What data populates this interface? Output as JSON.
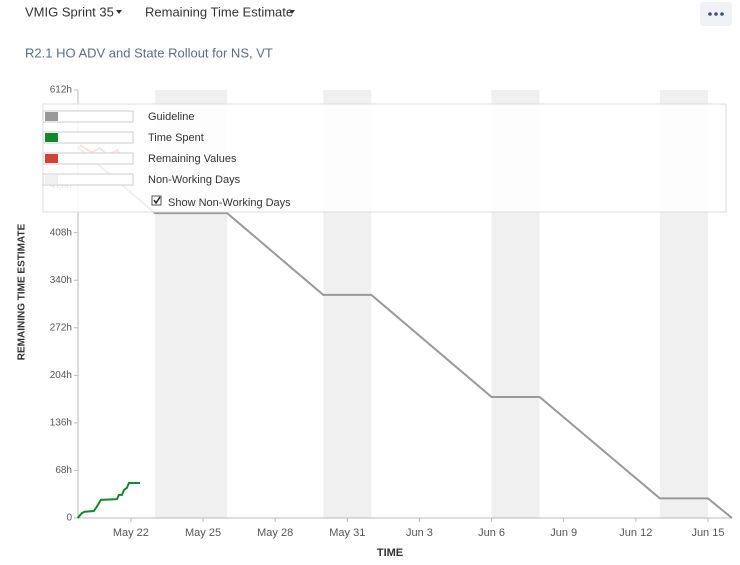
{
  "header": {
    "sprint": "VMIG Sprint 35",
    "report": "Remaining Time Estimate"
  },
  "chart_data": {
    "type": "line",
    "subtitle": "R2.1 HO ADV and State Rollout for NS, VT",
    "x_label": "TIME",
    "y_label": "REMAINING TIME ESTIMATE",
    "xlim": [
      19.8,
      47
    ],
    "xticks": [
      {
        "value": 22,
        "label": "May 22"
      },
      {
        "value": 25,
        "label": "May 25"
      },
      {
        "value": 28,
        "label": "May 28"
      },
      {
        "value": 31,
        "label": "May 31"
      },
      {
        "value": 34,
        "label": "Jun 3"
      },
      {
        "value": 37,
        "label": "Jun 6"
      },
      {
        "value": 40,
        "label": "Jun 9"
      },
      {
        "value": 43,
        "label": "Jun 12"
      },
      {
        "value": 46,
        "label": "Jun 15"
      }
    ],
    "ylim": [
      0,
      612
    ],
    "yticks": [
      0,
      {
        "value": 68,
        "label": "68h"
      },
      {
        "value": 136,
        "label": "136h"
      },
      {
        "value": 204,
        "label": "204h"
      },
      {
        "value": 272,
        "label": "272h"
      },
      {
        "value": 340,
        "label": "340h"
      },
      {
        "value": 408,
        "label": "408h"
      },
      {
        "value": 476,
        "label": "476h"
      },
      {
        "value": 544,
        "label": "544h"
      },
      {
        "value": 612,
        "label": "612h"
      }
    ],
    "series": [
      {
        "name": "Guideline",
        "color": "#999999",
        "x": [
          19.8,
          23,
          26,
          30,
          32,
          37,
          39,
          44,
          46,
          47
        ],
        "values": [
          530,
          436,
          436,
          319,
          319,
          173,
          173,
          28,
          28,
          0
        ]
      },
      {
        "name": "Time Spent",
        "color": "#14892c",
        "x": [
          19.79,
          19.96,
          20.08,
          20.46,
          20.58,
          20.75,
          21.42,
          21.5,
          21.63,
          21.71,
          21.83,
          21.92,
          22.38
        ],
        "values": [
          0,
          7,
          9,
          10,
          16,
          26,
          27,
          33,
          33,
          40,
          43,
          50,
          50
        ]
      },
      {
        "name": "Remaining Values",
        "color": "#d04437",
        "x": [
          19.88,
          20.38,
          20.71,
          21.04,
          21.42,
          21.67,
          21.96
        ],
        "values": [
          533,
          523,
          529,
          519,
          526,
          515,
          519
        ]
      }
    ],
    "non_working_days": {
      "name": "Non-Working Days",
      "color": "#f0f0f0",
      "ranges": [
        [
          23,
          26
        ],
        [
          30,
          32
        ],
        [
          37,
          39
        ],
        [
          44,
          46
        ]
      ]
    },
    "toggle_label": "Show Non-Working Days",
    "toggle_checked": true
  }
}
